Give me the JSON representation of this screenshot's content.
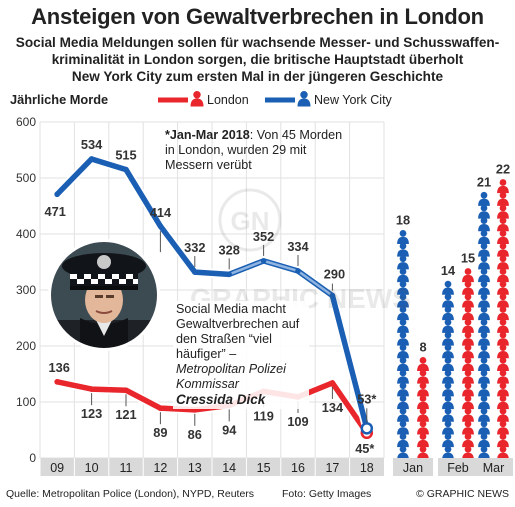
{
  "title": "Ansteigen von Gewaltverbrechen in London",
  "subtitle": "Social Media Meldungen sollen für wachsende Messer- und Schusswaffen-kriminalität in London sorgen, die britische Hauptstadt überholt New York City zum ersten Mal in der jüngeren Geschichte",
  "subtitle_lines": [
    "Social Media Meldungen sollen für wachsende Messer- und Schusswaffen-",
    "kriminalität in London sorgen, die britische Hauptstadt überholt",
    "New York City zum ersten Mal in der jüngeren Geschichte"
  ],
  "note": {
    "bold": "*Jan-Mar 2018",
    "text": ": Von 45 Morden in London, wurden 29 mit Messern verübt"
  },
  "quote": {
    "text": "Social Media macht Gewaltverbrechen auf den Straßen “viel häufiger” –",
    "source": "Metropolitan Polizei Kommissar",
    "name": "Cressida Dick"
  },
  "footer": {
    "source": "Quelle: Metropolitan Police (London), NYPD, Reuters",
    "photo": "Foto: Getty Images",
    "credit": "© GRAPHIC NEWS"
  },
  "colors": {
    "london": "#e8262c",
    "london_light": "#f29a9a",
    "newyork": "#1a5fb4",
    "newyork_light": "#8fb4e0",
    "grid": "#e2e2e2",
    "axis_bg": "#d9d9d9"
  },
  "chart_data": [
    {
      "type": "line",
      "ylabel": "Jährliche Morde",
      "ylim": [
        0,
        600
      ],
      "yticks": [
        0,
        100,
        200,
        300,
        400,
        500,
        600
      ],
      "categories": [
        "09",
        "10",
        "11",
        "12",
        "13",
        "14",
        "15",
        "16",
        "17",
        "18"
      ],
      "series": [
        {
          "name": "London",
          "values": [
            136,
            123,
            121,
            89,
            86,
            94,
            119,
            109,
            134,
            45
          ],
          "labels": [
            "136",
            "123",
            "121",
            "89",
            "86",
            "94",
            "119",
            "109",
            "134",
            "45*"
          ]
        },
        {
          "name": "New York City",
          "values": [
            471,
            534,
            515,
            414,
            332,
            328,
            352,
            334,
            290,
            53
          ],
          "labels": [
            "471",
            "534",
            "515",
            "414",
            "332",
            "328",
            "352",
            "334",
            "290",
            "53*"
          ]
        }
      ],
      "legend": "top"
    },
    {
      "type": "bar",
      "categories": [
        "Jan",
        "Feb",
        "Mar"
      ],
      "series": [
        {
          "name": "New York City",
          "values": [
            18,
            14,
            21
          ]
        },
        {
          "name": "London",
          "values": [
            8,
            15,
            22
          ]
        }
      ]
    }
  ]
}
